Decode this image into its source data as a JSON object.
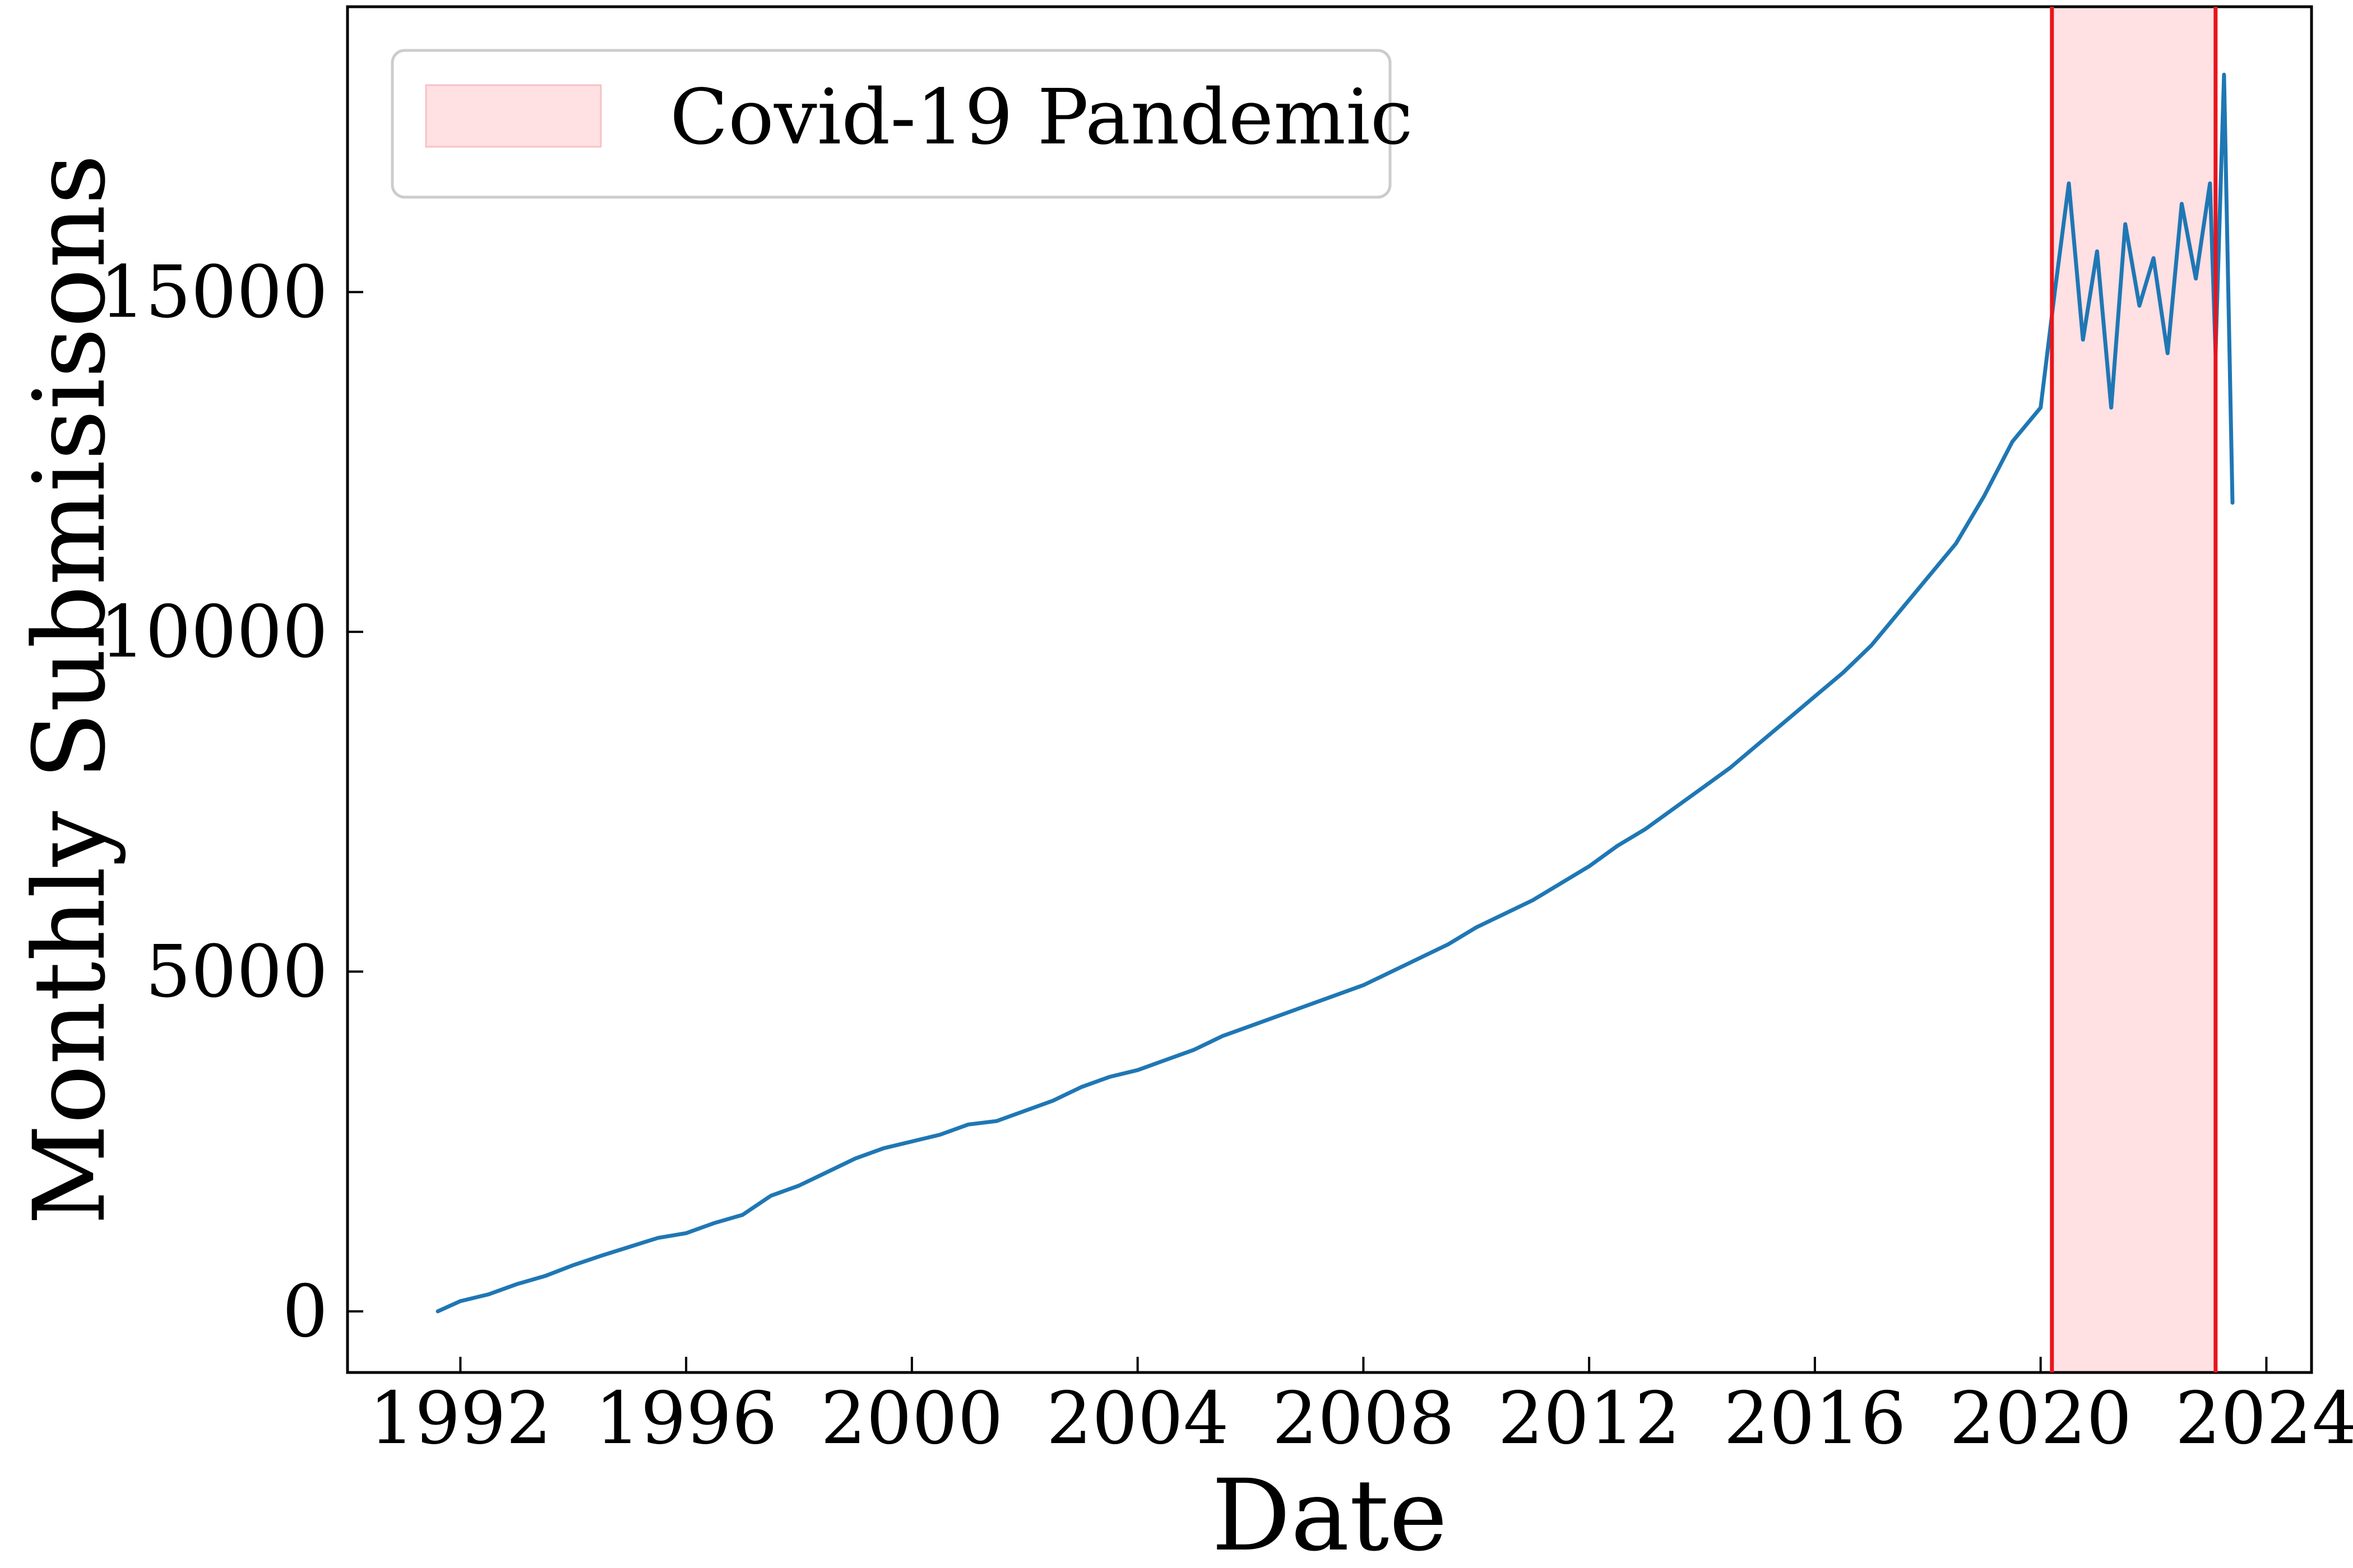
{
  "chart_data": {
    "type": "line",
    "xlabel": "Date",
    "ylabel": "Monthly Submisisons",
    "xlim": [
      1990.0,
      2024.8
    ],
    "ylim": [
      -900,
      19200
    ],
    "xticks": [
      1992,
      1996,
      2000,
      2004,
      2008,
      2012,
      2016,
      2020,
      2024
    ],
    "xtick_labels": [
      "1992",
      "1996",
      "2000",
      "2004",
      "2008",
      "2012",
      "2016",
      "2020",
      "2024"
    ],
    "yticks": [
      0,
      5000,
      10000,
      15000
    ],
    "ytick_labels": [
      "0",
      "5000",
      "10000",
      "15000"
    ],
    "grid": false,
    "legend": {
      "position": "top-left",
      "entries": [
        "Covid-19 Pandemic"
      ]
    },
    "colors": {
      "series": "#1f77b4",
      "span_fill": "#ffe0e3",
      "span_edge": "#e8141c"
    },
    "shaded_span": {
      "label": "Covid-19 Pandemic",
      "start": 2020.2,
      "end": 2023.1
    },
    "series": [
      {
        "x": [
          1991.6,
          1992.0,
          1992.5,
          1993.0,
          1993.5,
          1994.0,
          1994.5,
          1995.0,
          1995.5,
          1996.0,
          1996.5,
          1997.0,
          1997.5,
          1998.0,
          1998.5,
          1999.0,
          1999.5,
          2000.0,
          2000.5,
          2001.0,
          2001.5,
          2002.0,
          2002.5,
          2003.0,
          2003.5,
          2004.0,
          2004.5,
          2005.0,
          2005.5,
          2006.0,
          2006.5,
          2007.0,
          2007.5,
          2008.0,
          2008.5,
          2009.0,
          2009.5,
          2010.0,
          2010.5,
          2011.0,
          2011.5,
          2012.0,
          2012.5,
          2013.0,
          2013.5,
          2014.0,
          2014.5,
          2015.0,
          2015.5,
          2016.0,
          2016.5,
          2017.0,
          2017.5,
          2018.0,
          2018.5,
          2019.0,
          2019.5,
          2020.0,
          2020.25,
          2020.5,
          2020.75,
          2021.0,
          2021.25,
          2021.5,
          2021.75,
          2022.0,
          2022.25,
          2022.5,
          2022.75,
          2023.0,
          2023.1,
          2023.25,
          2023.4
        ],
        "values": [
          0,
          150,
          250,
          400,
          520,
          680,
          820,
          950,
          1080,
          1150,
          1300,
          1420,
          1700,
          1850,
          2050,
          2250,
          2400,
          2500,
          2600,
          2750,
          2800,
          2950,
          3100,
          3300,
          3450,
          3550,
          3700,
          3850,
          4050,
          4200,
          4350,
          4500,
          4650,
          4800,
          5000,
          5200,
          5400,
          5650,
          5850,
          6050,
          6300,
          6550,
          6850,
          7100,
          7400,
          7700,
          8000,
          8350,
          8700,
          9050,
          9400,
          9800,
          10300,
          10800,
          11300,
          12000,
          12800,
          13300,
          15000,
          16600,
          14300,
          15600,
          13300,
          16000,
          14800,
          15500,
          14100,
          16300,
          15200,
          16600,
          14100,
          18200,
          11900
        ]
      }
    ]
  }
}
